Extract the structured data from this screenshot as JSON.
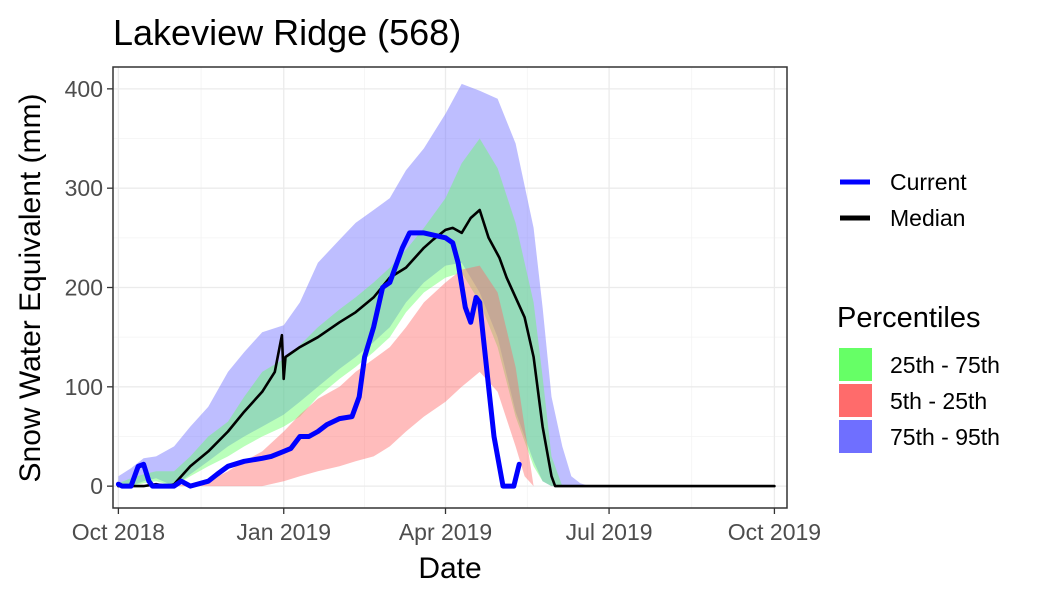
{
  "chart_data": {
    "type": "area",
    "title": "Lakeview Ridge (568)",
    "xlabel": "Date",
    "ylabel": "Snow Water Equivalent (mm)",
    "x_range": [
      "2018-09-28",
      "2019-10-08"
    ],
    "ylim": [
      -22,
      422
    ],
    "grid": true,
    "x_ticks": [
      {
        "date": "2018-10-01",
        "label": "Oct 2018"
      },
      {
        "date": "2019-01-01",
        "label": "Jan 2019"
      },
      {
        "date": "2019-04-01",
        "label": "Apr 2019"
      },
      {
        "date": "2019-07-01",
        "label": "Jul 2019"
      },
      {
        "date": "2019-10-01",
        "label": "Oct 2019"
      }
    ],
    "y_ticks": [
      0,
      100,
      200,
      300,
      400
    ],
    "legend": {
      "lines_title": "",
      "lines": [
        {
          "name": "Current",
          "color": "#0000ff"
        },
        {
          "name": "Median",
          "color": "#000000"
        }
      ],
      "bands_title": "Percentiles",
      "bands": [
        {
          "name": "25th - 75th",
          "color": "#66ff66"
        },
        {
          "name": "5th - 25th",
          "color": "#ff6b6b"
        },
        {
          "name": "75th - 95th",
          "color": "#6f6fff"
        }
      ]
    },
    "bands": [
      {
        "name": "75th - 95th",
        "color": "#6f6fff",
        "opacity": 0.45,
        "x": [
          "2018-10-01",
          "2018-10-08",
          "2018-10-15",
          "2018-10-22",
          "2018-11-01",
          "2018-11-10",
          "2018-11-20",
          "2018-12-01",
          "2018-12-10",
          "2018-12-20",
          "2019-01-01",
          "2019-01-10",
          "2019-01-20",
          "2019-02-01",
          "2019-02-10",
          "2019-02-20",
          "2019-03-01",
          "2019-03-10",
          "2019-03-20",
          "2019-04-01",
          "2019-04-10",
          "2019-04-20",
          "2019-04-30",
          "2019-05-10",
          "2019-05-20",
          "2019-05-25",
          "2019-05-30",
          "2019-06-05",
          "2019-06-10",
          "2019-06-15",
          "2019-06-20",
          "2019-09-20",
          "2019-09-25"
        ],
        "upper": [
          10,
          18,
          28,
          30,
          40,
          60,
          80,
          115,
          135,
          155,
          162,
          185,
          225,
          248,
          265,
          278,
          290,
          318,
          340,
          375,
          405,
          398,
          390,
          345,
          260,
          180,
          90,
          40,
          10,
          3,
          0,
          0,
          0
        ],
        "lower": [
          0,
          0,
          5,
          8,
          0,
          12,
          25,
          40,
          50,
          60,
          72,
          85,
          100,
          118,
          130,
          145,
          160,
          185,
          205,
          222,
          225,
          195,
          150,
          75,
          25,
          5,
          0,
          0,
          0,
          0,
          0,
          0,
          0
        ]
      },
      {
        "name": "25th - 75th",
        "color": "#66ff66",
        "opacity": 0.45,
        "x": [
          "2018-10-01",
          "2018-10-08",
          "2018-10-15",
          "2018-10-22",
          "2018-11-01",
          "2018-11-10",
          "2018-11-20",
          "2018-12-01",
          "2018-12-10",
          "2018-12-20",
          "2019-01-01",
          "2019-01-10",
          "2019-01-20",
          "2019-02-01",
          "2019-02-10",
          "2019-02-20",
          "2019-03-01",
          "2019-03-10",
          "2019-03-20",
          "2019-04-01",
          "2019-04-10",
          "2019-04-20",
          "2019-04-30",
          "2019-05-10",
          "2019-05-20",
          "2019-05-25",
          "2019-05-30",
          "2019-06-05"
        ],
        "upper": [
          3,
          8,
          12,
          15,
          15,
          30,
          50,
          65,
          90,
          115,
          128,
          142,
          160,
          178,
          190,
          205,
          220,
          238,
          260,
          290,
          325,
          350,
          320,
          265,
          185,
          110,
          30,
          0
        ],
        "lower": [
          0,
          0,
          3,
          5,
          0,
          10,
          20,
          30,
          40,
          50,
          60,
          70,
          90,
          108,
          120,
          135,
          150,
          175,
          195,
          210,
          215,
          185,
          140,
          70,
          20,
          5,
          0,
          0
        ]
      },
      {
        "name": "5th - 25th",
        "color": "#ff6b6b",
        "opacity": 0.45,
        "x": [
          "2018-10-01",
          "2018-10-15",
          "2018-11-01",
          "2018-11-20",
          "2018-12-01",
          "2018-12-10",
          "2018-12-20",
          "2019-01-01",
          "2019-01-10",
          "2019-01-20",
          "2019-02-01",
          "2019-02-10",
          "2019-02-20",
          "2019-03-01",
          "2019-03-10",
          "2019-03-20",
          "2019-04-01",
          "2019-04-10",
          "2019-04-20",
          "2019-04-30",
          "2019-05-10",
          "2019-05-15",
          "2019-05-20"
        ],
        "upper": [
          0,
          0,
          0,
          5,
          15,
          25,
          35,
          55,
          72,
          88,
          100,
          115,
          128,
          140,
          160,
          185,
          205,
          218,
          222,
          195,
          120,
          60,
          0
        ],
        "lower": [
          0,
          0,
          0,
          0,
          0,
          0,
          0,
          5,
          10,
          15,
          20,
          25,
          30,
          40,
          55,
          70,
          85,
          100,
          115,
          95,
          40,
          10,
          0
        ]
      }
    ],
    "series": [
      {
        "name": "Median",
        "color": "#000000",
        "x": [
          "2018-10-01",
          "2018-10-15",
          "2018-10-22",
          "2018-10-28",
          "2018-11-01",
          "2018-11-05",
          "2018-11-10",
          "2018-11-20",
          "2018-12-01",
          "2018-12-10",
          "2018-12-20",
          "2018-12-27",
          "2018-12-31",
          "2019-01-01",
          "2019-01-02",
          "2019-01-10",
          "2019-01-20",
          "2019-02-01",
          "2019-02-10",
          "2019-02-20",
          "2019-03-01",
          "2019-03-10",
          "2019-03-20",
          "2019-03-25",
          "2019-04-01",
          "2019-04-05",
          "2019-04-10",
          "2019-04-15",
          "2019-04-20",
          "2019-04-25",
          "2019-05-01",
          "2019-05-05",
          "2019-05-10",
          "2019-05-15",
          "2019-05-20",
          "2019-05-25",
          "2019-05-30",
          "2019-06-01",
          "2019-10-01"
        ],
        "y": [
          0,
          0,
          2,
          0,
          2,
          10,
          20,
          35,
          55,
          75,
          95,
          115,
          152,
          108,
          130,
          140,
          150,
          165,
          175,
          190,
          210,
          220,
          240,
          248,
          258,
          260,
          255,
          270,
          278,
          250,
          230,
          210,
          190,
          170,
          130,
          60,
          10,
          0,
          0
        ]
      },
      {
        "name": "Current",
        "color": "#0000ff",
        "x": [
          "2018-10-01",
          "2018-10-03",
          "2018-10-08",
          "2018-10-12",
          "2018-10-15",
          "2018-10-18",
          "2018-10-20",
          "2018-10-25",
          "2018-11-01",
          "2018-11-05",
          "2018-11-10",
          "2018-11-20",
          "2018-11-25",
          "2018-12-01",
          "2018-12-10",
          "2018-12-20",
          "2018-12-25",
          "2019-01-01",
          "2019-01-05",
          "2019-01-10",
          "2019-01-15",
          "2019-01-20",
          "2019-01-25",
          "2019-02-01",
          "2019-02-08",
          "2019-02-12",
          "2019-02-15",
          "2019-02-20",
          "2019-02-25",
          "2019-03-01",
          "2019-03-08",
          "2019-03-12",
          "2019-03-15",
          "2019-03-20",
          "2019-04-01",
          "2019-04-05",
          "2019-04-08",
          "2019-04-12",
          "2019-04-15",
          "2019-04-18",
          "2019-04-20",
          "2019-04-22",
          "2019-04-25",
          "2019-04-28",
          "2019-05-03",
          "2019-05-06",
          "2019-05-09",
          "2019-05-12"
        ],
        "y": [
          2,
          0,
          0,
          20,
          22,
          5,
          0,
          0,
          0,
          5,
          0,
          5,
          12,
          20,
          25,
          28,
          30,
          35,
          38,
          50,
          50,
          55,
          62,
          68,
          70,
          90,
          130,
          160,
          200,
          205,
          240,
          255,
          255,
          255,
          250,
          245,
          225,
          180,
          165,
          190,
          185,
          150,
          100,
          50,
          0,
          0,
          0,
          22
        ]
      }
    ]
  }
}
